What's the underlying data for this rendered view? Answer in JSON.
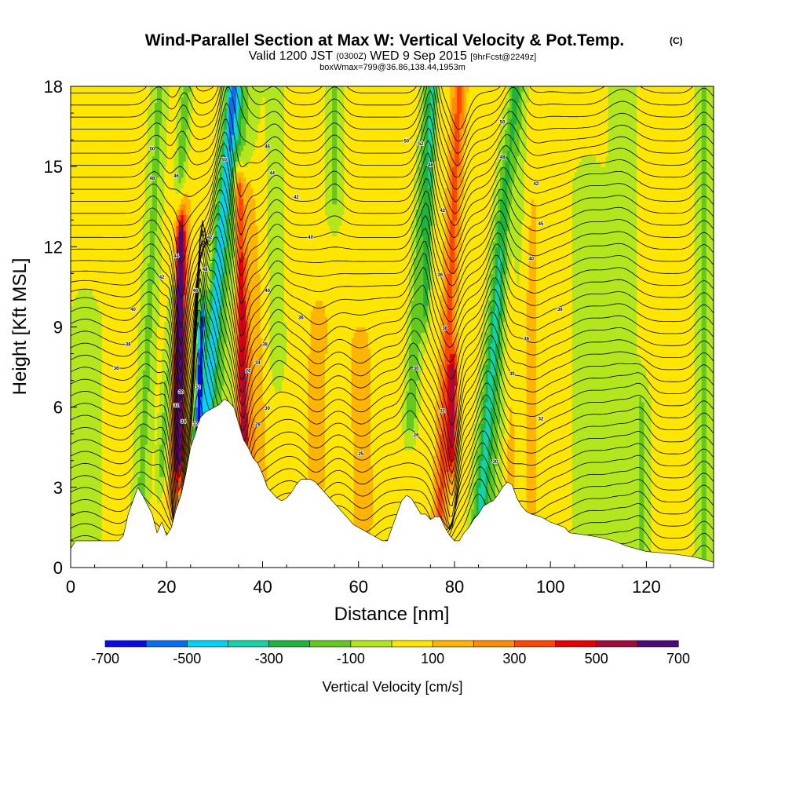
{
  "header": {
    "title": "Wind-Parallel Section at Max W: Vertical Velocity & Pot.Temp.",
    "title_mark": "(C)",
    "valid_prefix": "Valid 1200 JST",
    "valid_zulu": "(0300Z)",
    "valid_date": "WED 9 Sep 2015",
    "forecast_info": "[9hrFcst@2249z]",
    "box_info": "boxWmax=799@36.86,138.44,1953m"
  },
  "chart_data": {
    "type": "heatmap",
    "xlabel": "Distance [nm]",
    "ylabel": "Height [Kft MSL]",
    "xlim": [
      0,
      134
    ],
    "ylim": [
      0,
      18
    ],
    "x_ticks": [
      "0",
      "20",
      "40",
      "60",
      "80",
      "100",
      "120"
    ],
    "y_ticks": [
      "0",
      "3",
      "6",
      "9",
      "12",
      "15",
      "18"
    ],
    "grid": false,
    "colorbar": {
      "label": "Vertical Velocity [cm/s]",
      "tick_labels": [
        "-700",
        "-500",
        "-300",
        "-100",
        "100",
        "300",
        "500",
        "700"
      ],
      "bounds": [
        -700,
        -600,
        -500,
        -400,
        -300,
        -200,
        -100,
        0,
        100,
        200,
        300,
        400,
        500,
        600,
        700
      ],
      "colors": [
        "#0a0ae6",
        "#0a6ef0",
        "#00d2f5",
        "#14d2aa",
        "#1eb43c",
        "#64c81e",
        "#b4e61e",
        "#ffe600",
        "#ffb400",
        "#ff8c00",
        "#ff4600",
        "#e60000",
        "#a00a3c",
        "#500a78"
      ]
    },
    "terrain": {
      "x": [
        0,
        1,
        5,
        10,
        11,
        12,
        14,
        15,
        17,
        18,
        19,
        20,
        21,
        22,
        23,
        24,
        25,
        26,
        27,
        28,
        29,
        30,
        31,
        32,
        33,
        34,
        35,
        36,
        37,
        38,
        39,
        40,
        41,
        42,
        43,
        44,
        45,
        46,
        47,
        48,
        49,
        50,
        51,
        52,
        53,
        54,
        55,
        56,
        57,
        58,
        59,
        60,
        62,
        64,
        65,
        66,
        67,
        68,
        69,
        70,
        71,
        72,
        73,
        74,
        75,
        76,
        77,
        78,
        79,
        80,
        81,
        82,
        83,
        84,
        85,
        86,
        87,
        88,
        89,
        90,
        91,
        92,
        93,
        94,
        95,
        96,
        98,
        100,
        103,
        104,
        108,
        111,
        113,
        116,
        120,
        126,
        130,
        132,
        134
      ],
      "height": [
        0.7,
        1.0,
        1.0,
        1.0,
        1.2,
        2.0,
        3.0,
        2.7,
        2.0,
        1.3,
        1.7,
        1.2,
        1.5,
        2.2,
        2.7,
        3.5,
        4.5,
        5.0,
        5.6,
        5.8,
        5.9,
        6.0,
        6.1,
        6.3,
        6.2,
        6.0,
        5.4,
        4.8,
        4.5,
        4.1,
        3.9,
        3.5,
        3.0,
        2.8,
        2.6,
        2.5,
        2.6,
        2.8,
        3.1,
        3.3,
        3.3,
        3.3,
        3.2,
        3.0,
        2.8,
        2.6,
        2.4,
        2.2,
        2.0,
        1.8,
        1.6,
        1.5,
        1.3,
        1.1,
        1.0,
        1.0,
        1.5,
        2.0,
        2.5,
        2.7,
        2.6,
        2.3,
        2.0,
        2.0,
        1.8,
        1.9,
        1.9,
        1.5,
        1.2,
        1.0,
        1.0,
        1.3,
        1.5,
        1.8,
        2.0,
        2.3,
        2.4,
        2.5,
        2.7,
        3.0,
        3.2,
        3.1,
        2.6,
        2.3,
        2.1,
        2.0,
        1.9,
        1.7,
        1.5,
        1.3,
        1.2,
        1.1,
        1.0,
        0.8,
        0.6,
        0.5,
        0.4,
        0.3,
        0.2
      ]
    },
    "features": [
      {
        "x": 14.0,
        "z0": 0.0,
        "z1": 18.0,
        "slope": 0.25,
        "w": 1.6,
        "amp": -150
      },
      {
        "x": 19.2,
        "z0": 4.0,
        "z1": 18.0,
        "slope": 0.35,
        "w": 1.1,
        "amp": -200
      },
      {
        "x": 22.5,
        "z0": 4.8,
        "z1": 12.0,
        "slope": 0.05,
        "w": 0.85,
        "amp": 700
      },
      {
        "x": 22.0,
        "z0": 3.0,
        "z1": 13.0,
        "slope": 0.1,
        "w": 1.9,
        "amp": 250
      },
      {
        "x": 26.5,
        "z0": 5.0,
        "z1": 9.0,
        "slope": 0.2,
        "w": 0.7,
        "amp": -700
      },
      {
        "x": 28.0,
        "z0": 5.0,
        "z1": 18.0,
        "slope": 0.45,
        "w": 1.3,
        "amp": -400
      },
      {
        "x": 29.0,
        "z0": 3.0,
        "z1": 18.0,
        "slope": 0.45,
        "w": 3.2,
        "amp": -150
      },
      {
        "x": 36.0,
        "z0": 5.0,
        "z1": 14.0,
        "slope": -0.1,
        "w": 1.0,
        "amp": 400
      },
      {
        "x": 38.0,
        "z0": 3.0,
        "z1": 14.0,
        "slope": -0.2,
        "w": 3.0,
        "amp": 180
      },
      {
        "x": 34.5,
        "z0": 12.0,
        "z1": 18.0,
        "slope": 0.0,
        "w": 1.5,
        "amp": -150
      },
      {
        "x": 43.0,
        "z0": 8.0,
        "z1": 18.0,
        "slope": -0.05,
        "w": 1.5,
        "amp": -130
      },
      {
        "x": 51.0,
        "z0": 3.0,
        "z1": 9.0,
        "slope": 0.1,
        "w": 2.0,
        "amp": 150
      },
      {
        "x": 55.0,
        "z0": 14.0,
        "z1": 18.0,
        "slope": 0.0,
        "w": 1.6,
        "amp": -150
      },
      {
        "x": 61.0,
        "z0": 2.0,
        "z1": 8.0,
        "slope": -0.1,
        "w": 2.2,
        "amp": 150
      },
      {
        "x": 71.0,
        "z0": 6.0,
        "z1": 18.0,
        "slope": 0.3,
        "w": 1.3,
        "amp": -220
      },
      {
        "x": 74.0,
        "z0": 10.0,
        "z1": 18.0,
        "slope": 0.2,
        "w": 0.8,
        "amp": -250
      },
      {
        "x": 77.0,
        "z0": 2.0,
        "z1": 18.0,
        "slope": 0.25,
        "w": 1.5,
        "amp": 300
      },
      {
        "x": 79.5,
        "z0": 4.5,
        "z1": 7.0,
        "slope": 0.1,
        "w": 0.9,
        "amp": 450
      },
      {
        "x": 85.0,
        "z0": 1.5,
        "z1": 18.0,
        "slope": 0.45,
        "w": 1.5,
        "amp": -280
      },
      {
        "x": 87.0,
        "z0": 1.5,
        "z1": 18.0,
        "slope": 0.45,
        "w": 3.0,
        "amp": -130
      },
      {
        "x": 91.5,
        "z0": 3.0,
        "z1": 18.0,
        "slope": 0.0,
        "w": 1.5,
        "amp": 130
      },
      {
        "x": 96.0,
        "z0": 0.0,
        "z1": 18.0,
        "slope": 0.0,
        "w": 2.0,
        "amp": 100
      },
      {
        "x": 115.0,
        "z0": 0.0,
        "z1": 18.0,
        "slope": 0.0,
        "w": 2.5,
        "amp": -130
      },
      {
        "x": 119.0,
        "z0": 0.0,
        "z1": 6.0,
        "slope": 0.0,
        "w": 1.5,
        "amp": -130
      },
      {
        "x": 108.0,
        "z0": 0.0,
        "z1": 14.0,
        "slope": 0.0,
        "w": 3.0,
        "amp": -120
      },
      {
        "x": 132.0,
        "z0": 0.0,
        "z1": 18.0,
        "slope": 0.0,
        "w": 1.5,
        "amp": -140
      },
      {
        "x": 3.0,
        "z0": 0.0,
        "z1": 9.0,
        "slope": 0.0,
        "w": 3.0,
        "amp": -120
      }
    ],
    "contour_labels": [
      {
        "text": "36",
        "x": 9.5,
        "z": 7.4
      },
      {
        "text": "38",
        "x": 12.0,
        "z": 8.3
      },
      {
        "text": "40",
        "x": 13.0,
        "z": 9.6
      },
      {
        "text": "42",
        "x": 19.0,
        "z": 10.8
      },
      {
        "text": "44",
        "x": 22.0,
        "z": 11.6
      },
      {
        "text": "48",
        "x": 17.0,
        "z": 14.5
      },
      {
        "text": "50",
        "x": 17.0,
        "z": 15.6
      },
      {
        "text": "46",
        "x": 22.0,
        "z": 14.6
      },
      {
        "text": "46",
        "x": 26.0,
        "z": 10.3
      },
      {
        "text": "48",
        "x": 28.0,
        "z": 11.1
      },
      {
        "text": "42",
        "x": 29.0,
        "z": 12.3
      },
      {
        "text": "50",
        "x": 32.0,
        "z": 15.2
      },
      {
        "text": "40",
        "x": 41.0,
        "z": 10.3
      },
      {
        "text": "36",
        "x": 48.0,
        "z": 9.3
      },
      {
        "text": "40",
        "x": 50.0,
        "z": 12.3
      },
      {
        "text": "42",
        "x": 47.0,
        "z": 13.8
      },
      {
        "text": "44",
        "x": 42.0,
        "z": 14.7
      },
      {
        "text": "46",
        "x": 41.0,
        "z": 15.7
      },
      {
        "text": "38",
        "x": 40.5,
        "z": 8.3
      },
      {
        "text": "34",
        "x": 39.0,
        "z": 7.6
      },
      {
        "text": "30",
        "x": 41.0,
        "z": 5.9
      },
      {
        "text": "28",
        "x": 39.0,
        "z": 5.3
      },
      {
        "text": "26",
        "x": 37.0,
        "z": 7.3
      },
      {
        "text": "30",
        "x": 23.0,
        "z": 6.5
      },
      {
        "text": "34",
        "x": 23.5,
        "z": 5.4
      },
      {
        "text": "32",
        "x": 26.0,
        "z": 5.3
      },
      {
        "text": "32",
        "x": 26.5,
        "z": 6.7
      },
      {
        "text": "32",
        "x": 22.0,
        "z": 6.0
      },
      {
        "text": "25",
        "x": 60.5,
        "z": 4.2
      },
      {
        "text": "30",
        "x": 72.0,
        "z": 7.4
      },
      {
        "text": "26",
        "x": 72.0,
        "z": 4.9
      },
      {
        "text": "32",
        "x": 77.5,
        "z": 5.8
      },
      {
        "text": "38",
        "x": 78.0,
        "z": 8.9
      },
      {
        "text": "36",
        "x": 77.0,
        "z": 10.9
      },
      {
        "text": "42",
        "x": 77.5,
        "z": 13.3
      },
      {
        "text": "48",
        "x": 75.0,
        "z": 15.0
      },
      {
        "text": "52",
        "x": 73.0,
        "z": 15.8
      },
      {
        "text": "50",
        "x": 70.0,
        "z": 15.9
      },
      {
        "text": "30",
        "x": 88.5,
        "z": 3.9
      },
      {
        "text": "30",
        "x": 92.0,
        "z": 7.2
      },
      {
        "text": "38",
        "x": 95.0,
        "z": 8.5
      },
      {
        "text": "32",
        "x": 98.0,
        "z": 5.5
      },
      {
        "text": "36",
        "x": 102.0,
        "z": 9.6
      },
      {
        "text": "40",
        "x": 96.0,
        "z": 11.5
      },
      {
        "text": "45",
        "x": 98.0,
        "z": 12.8
      },
      {
        "text": "42",
        "x": 97.0,
        "z": 14.3
      },
      {
        "text": "48",
        "x": 90.0,
        "z": 15.3
      },
      {
        "text": "50",
        "x": 90.0,
        "z": 16.6
      }
    ],
    "theta_profile": {
      "z": [
        0,
        3,
        6,
        9,
        12,
        15,
        18
      ],
      "theta": [
        26,
        30,
        34,
        38,
        42,
        47,
        52
      ]
    }
  }
}
